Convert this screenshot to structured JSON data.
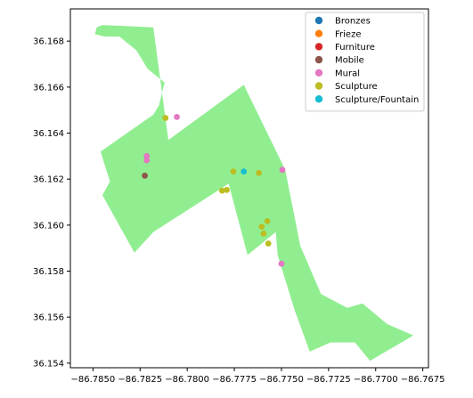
{
  "chart_data": {
    "type": "scatter",
    "title": "",
    "xlabel": "",
    "ylabel": "",
    "xlim": [
      -86.7862,
      -86.7672
    ],
    "ylim": [
      36.1538,
      36.1694
    ],
    "grid": false,
    "xticks": [
      {
        "value": -86.785,
        "label": "−86.7850"
      },
      {
        "value": -86.7825,
        "label": "−86.7825"
      },
      {
        "value": -86.78,
        "label": "−86.7800"
      },
      {
        "value": -86.7775,
        "label": "−86.7775"
      },
      {
        "value": -86.775,
        "label": "−86.7750"
      },
      {
        "value": -86.7725,
        "label": "−86.7725"
      },
      {
        "value": -86.77,
        "label": "−86.7700"
      },
      {
        "value": -86.7675,
        "label": "−86.7675"
      }
    ],
    "yticks": [
      {
        "value": 36.154,
        "label": "36.154"
      },
      {
        "value": 36.156,
        "label": "36.156"
      },
      {
        "value": 36.158,
        "label": "36.158"
      },
      {
        "value": 36.16,
        "label": "36.160"
      },
      {
        "value": 36.162,
        "label": "36.162"
      },
      {
        "value": 36.164,
        "label": "36.164"
      },
      {
        "value": 36.166,
        "label": "36.166"
      },
      {
        "value": 36.168,
        "label": "36.168"
      }
    ],
    "area_color": "#90ee90",
    "area_polygon": [
      [
        -86.7849,
        36.1683
      ],
      [
        -86.7848,
        36.1686
      ],
      [
        -86.7845,
        36.1687
      ],
      [
        -86.7818,
        36.1686
      ],
      [
        -86.781,
        36.1637
      ],
      [
        -86.777,
        36.1661
      ],
      [
        -86.7748,
        36.1624
      ],
      [
        -86.774,
        36.1591
      ],
      [
        -86.7729,
        36.157
      ],
      [
        -86.7715,
        36.1564
      ],
      [
        -86.7707,
        36.1566
      ],
      [
        -86.7694,
        36.1557
      ],
      [
        -86.768,
        36.1552
      ],
      [
        -86.7701,
        36.1542
      ],
      [
        -86.7703,
        36.1541
      ],
      [
        -86.7711,
        36.1549
      ],
      [
        -86.7724,
        36.1549
      ],
      [
        -86.7735,
        36.1545
      ],
      [
        -86.7743,
        36.1563
      ],
      [
        -86.7752,
        36.1587
      ],
      [
        -86.7753,
        36.1597
      ],
      [
        -86.7768,
        36.1587
      ],
      [
        -86.7778,
        36.1618
      ],
      [
        -86.7818,
        36.1597
      ],
      [
        -86.7828,
        36.1588
      ],
      [
        -86.7845,
        36.1613
      ],
      [
        -86.7841,
        36.1619
      ],
      [
        -86.7846,
        36.1632
      ],
      [
        -86.7818,
        36.1648
      ],
      [
        -86.7815,
        36.1652
      ],
      [
        -86.7812,
        36.1662
      ],
      [
        -86.7821,
        36.1668
      ],
      [
        -86.7827,
        36.1676
      ],
      [
        -86.7836,
        36.1682
      ],
      [
        -86.7844,
        36.1682
      ]
    ],
    "legend": {
      "placement": "top-right",
      "entries": [
        {
          "name": "Bronzes",
          "color": "#1f77b4"
        },
        {
          "name": "Frieze",
          "color": "#ff7f0e"
        },
        {
          "name": "Furniture",
          "color": "#d62728"
        },
        {
          "name": "Mobile",
          "color": "#8c564b"
        },
        {
          "name": "Mural",
          "color": "#e377c2"
        },
        {
          "name": "Sculpture",
          "color": "#bcbd22"
        },
        {
          "name": "Sculpture/Fountain",
          "color": "#17becf"
        }
      ]
    },
    "series": [
      {
        "name": "Mobile",
        "points": [
          [
            -86.78225,
            36.16215
          ]
        ]
      },
      {
        "name": "Mural",
        "points": [
          [
            -86.78215,
            36.163
          ],
          [
            -86.78215,
            36.16282
          ],
          [
            -86.78055,
            36.1647
          ],
          [
            -86.77495,
            36.1624
          ],
          [
            -86.775,
            36.15832
          ]
        ]
      },
      {
        "name": "Sculpture",
        "points": [
          [
            -86.78115,
            36.16466
          ],
          [
            -86.77755,
            36.16233
          ],
          [
            -86.7762,
            36.16227
          ],
          [
            -86.77815,
            36.1615
          ],
          [
            -86.7779,
            36.16153
          ],
          [
            -86.77575,
            36.16017
          ],
          [
            -86.77605,
            36.15993
          ],
          [
            -86.77595,
            36.15963
          ],
          [
            -86.7757,
            36.1592
          ]
        ]
      },
      {
        "name": "Sculpture/Fountain",
        "points": [
          [
            -86.777,
            36.16233
          ]
        ]
      }
    ]
  }
}
